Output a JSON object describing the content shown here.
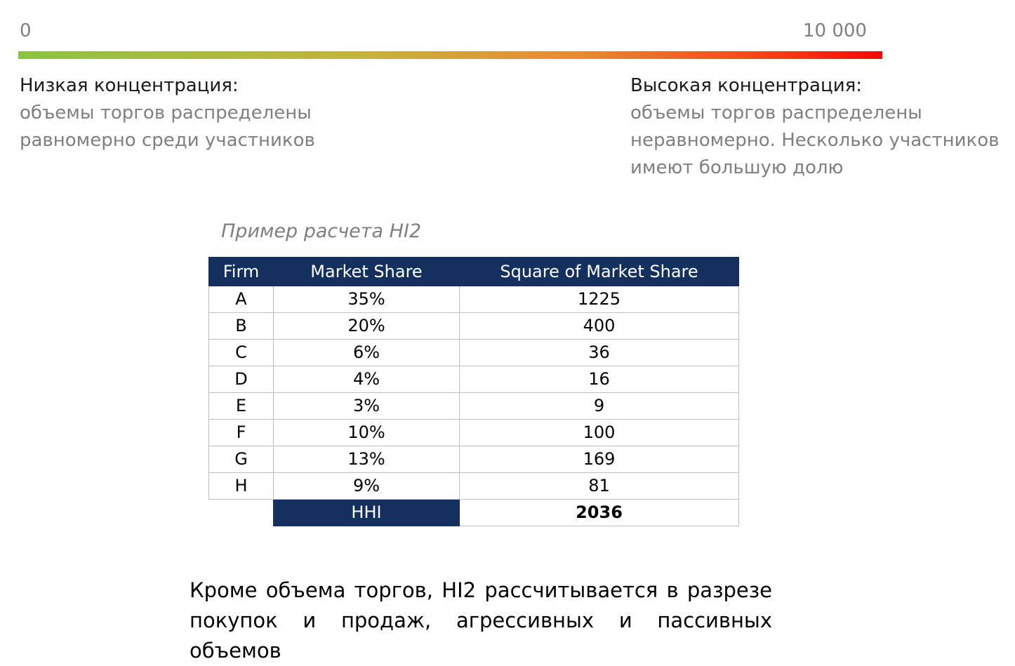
{
  "scale": {
    "min_label": "0",
    "max_label": "10 000",
    "gradient_start_color": "#8cc43f",
    "gradient_end_color": "#f40a0a"
  },
  "low_concentration": {
    "title": "Низкая концентрация:",
    "line1": "объемы торгов распределены",
    "line2": "равномерно среди участников"
  },
  "high_concentration": {
    "title": "Высокая концентрация:",
    "line1": "объемы торгов распределены",
    "line2": "неравномерно. Несколько участников",
    "line3": "имеют большую долю"
  },
  "example_caption": "Пример расчета HI2",
  "table": {
    "header_color": "#13305e",
    "headers": [
      "Firm",
      "Market Share",
      "Square of Market Share"
    ],
    "rows": [
      [
        "A",
        "35%",
        "1225"
      ],
      [
        "B",
        "20%",
        "400"
      ],
      [
        "C",
        "6%",
        "36"
      ],
      [
        "D",
        "4%",
        "16"
      ],
      [
        "E",
        "3%",
        "9"
      ],
      [
        "F",
        "10%",
        "100"
      ],
      [
        "G",
        "13%",
        "169"
      ],
      [
        "H",
        "9%",
        "81"
      ]
    ],
    "total_label": "HHI",
    "total_value": "2036"
  },
  "footnote": "Кроме объема торгов, HI2 рассчитывается в разрезе покупок и продаж, агрессивных и пассивных объемов"
}
